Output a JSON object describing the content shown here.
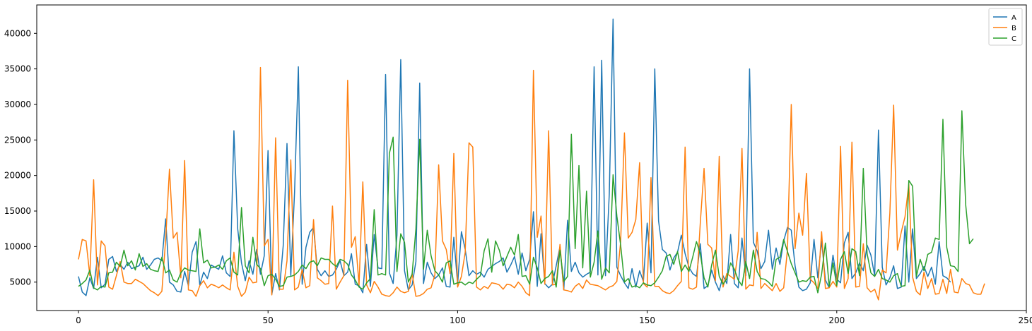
{
  "chart_data": {
    "type": "line",
    "title": "",
    "xlabel": "",
    "ylabel": "",
    "xlim": [
      -11,
      250
    ],
    "ylim": [
      1000,
      44000
    ],
    "xticks": [
      0,
      50,
      100,
      150,
      200,
      250
    ],
    "yticks": [
      5000,
      10000,
      15000,
      20000,
      25000,
      30000,
      35000,
      40000
    ],
    "grid": false,
    "legend_position": "top-right",
    "series": [
      {
        "name": "A",
        "color": "#1f77b4",
        "values": [
          5800,
          3600,
          3100,
          5600,
          4100,
          8500,
          4200,
          4700,
          8200,
          8600,
          6500,
          7500,
          6800,
          7800,
          6900,
          7100,
          7300,
          8500,
          6800,
          7400,
          8200,
          8400,
          8000,
          13900,
          5000,
          4600,
          3700,
          3600,
          6500,
          4500,
          9200,
          10700,
          4600,
          6400,
          5500,
          7400,
          7100,
          6800,
          8700,
          6300,
          5800,
          26300,
          12500,
          7700,
          5200,
          8000,
          6100,
          9600,
          6100,
          8700,
          23500,
          3300,
          6200,
          3900,
          10100,
          24500,
          5900,
          17700,
          35300,
          4700,
          9900,
          12000,
          12700,
          6800,
          5900,
          6600,
          5800,
          6000,
          6800,
          8000,
          5900,
          6400,
          9000,
          4700,
          4500,
          3500,
          10300,
          4400,
          11700,
          7000,
          6900,
          34200,
          6300,
          4800,
          11600,
          36300,
          6600,
          3900,
          4600,
          7900,
          33000,
          4800,
          7800,
          6300,
          5500,
          6000,
          7000,
          4400,
          4300,
          11300,
          4700,
          12100,
          9600,
          5900,
          6600,
          6100,
          6400,
          5700,
          6800,
          7200,
          7600,
          7900,
          8400,
          6400,
          7400,
          8600,
          6100,
          9100,
          6600,
          8200,
          14900,
          4400,
          11800,
          4800,
          4200,
          4700,
          7300,
          10000,
          3900,
          13700,
          6500,
          7800,
          6300,
          5700,
          6100,
          6400,
          35300,
          6000,
          36200,
          5900,
          17400,
          42000,
          7100,
          5900,
          4900,
          4100,
          6900,
          4300,
          6600,
          5100,
          13300,
          6300,
          35000,
          13600,
          9600,
          9100,
          6700,
          8400,
          9200,
          11600,
          9000,
          7100,
          6200,
          5800,
          10400,
          4100,
          4500,
          6700,
          5000,
          3800,
          5900,
          4800,
          11700,
          4800,
          4200,
          11200,
          5900,
          35000,
          10600,
          9400,
          6900,
          7900,
          12300,
          6800,
          9800,
          7500,
          10800,
          12700,
          12300,
          7300,
          4300,
          3800,
          4000,
          4900,
          11000,
          5600,
          10800,
          5300,
          4200,
          8800,
          5400,
          4900,
          10500,
          12000,
          5500,
          6300,
          7700,
          6600,
          10200,
          8800,
          5900,
          26400,
          7100,
          4600,
          5600,
          7300,
          4100,
          4300,
          12900,
          5000,
          12500,
          5500,
          6200,
          7200,
          5800,
          7100,
          4700,
          10700,
          5900,
          5600,
          5000
        ]
      },
      {
        "name": "B",
        "color": "#ff7f0e",
        "values": [
          8200,
          11000,
          10800,
          5900,
          19400,
          4600,
          10800,
          10100,
          4300,
          4000,
          5900,
          7900,
          5000,
          4800,
          4800,
          5400,
          5100,
          4800,
          4300,
          3800,
          3500,
          3100,
          3700,
          11000,
          20900,
          11200,
          12000,
          5600,
          22100,
          3900,
          3800,
          3000,
          4500,
          5200,
          4200,
          4700,
          4500,
          4200,
          4600,
          4200,
          3900,
          9200,
          4400,
          3000,
          3600,
          5700,
          4900,
          5000,
          35200,
          10100,
          11000,
          3200,
          25300,
          4000,
          4000,
          8000,
          22200,
          3900,
          4300,
          6800,
          4200,
          4500,
          13800,
          5600,
          5200,
          4700,
          4800,
          15700,
          4000,
          5000,
          5900,
          33400,
          9900,
          11400,
          4600,
          19100,
          4600,
          3500,
          5100,
          4300,
          3300,
          3100,
          3000,
          3500,
          4300,
          3700,
          3500,
          3700,
          6200,
          3000,
          3100,
          3400,
          4000,
          4200,
          6000,
          21500,
          10800,
          9600,
          6200,
          23100,
          4300,
          5800,
          9200,
          24600,
          24000,
          4300,
          3900,
          4400,
          4100,
          4900,
          4800,
          4600,
          4000,
          4700,
          4600,
          4200,
          5000,
          4400,
          3500,
          3100,
          34800,
          11300,
          14300,
          4700,
          26300,
          4600,
          4700,
          10300,
          3900,
          3800,
          3600,
          4400,
          4800,
          4100,
          5300,
          4700,
          4600,
          4500,
          4200,
          3900,
          4300,
          4500,
          5100,
          10700,
          26000,
          11200,
          12000,
          13800,
          21800,
          4800,
          4300,
          19700,
          4400,
          4400,
          3800,
          3500,
          3400,
          3800,
          4500,
          5100,
          24000,
          4200,
          4000,
          4300,
          13300,
          21000,
          10300,
          9800,
          5200,
          22700,
          4300,
          6200,
          5800,
          5400,
          9400,
          23800,
          4000,
          4600,
          4500,
          12000,
          4100,
          4800,
          4300,
          3800,
          4800,
          3700,
          4200,
          9600,
          30000,
          9700,
          14700,
          11600,
          20300,
          5400,
          4900,
          4100,
          12100,
          4100,
          4200,
          5100,
          4300,
          24100,
          4100,
          5500,
          24700,
          4300,
          4400,
          10400,
          4200,
          3600,
          4000,
          2500,
          6700,
          6300,
          14700,
          29900,
          9500,
          12000,
          14200,
          18800,
          5700,
          3700,
          3200,
          6400,
          4100,
          5500,
          3300,
          3400,
          5400,
          3400,
          6800,
          3600,
          3500,
          5500,
          4800,
          4600,
          3500,
          3300,
          3300,
          4800
        ]
      },
      {
        "name": "C",
        "color": "#2ca02c",
        "values": [
          4400,
          4800,
          5300,
          6700,
          4200,
          3900,
          4400,
          4300,
          6300,
          6400,
          7800,
          7200,
          9500,
          7300,
          8000,
          6700,
          9000,
          7200,
          7600,
          6800,
          6600,
          6500,
          8500,
          6300,
          6700,
          5300,
          5000,
          6300,
          7000,
          6700,
          6600,
          6500,
          12500,
          7700,
          8100,
          7000,
          7100,
          7400,
          6800,
          8000,
          8400,
          6400,
          6000,
          15500,
          7300,
          6300,
          11300,
          7500,
          6900,
          4500,
          5900,
          6100,
          5400,
          4400,
          4500,
          5700,
          5800,
          6000,
          6500,
          7400,
          6900,
          7800,
          8000,
          7300,
          8400,
          8200,
          8200,
          7600,
          7200,
          8200,
          8000,
          7500,
          6000,
          5300,
          4300,
          4000,
          4900,
          5500,
          15200,
          6000,
          6200,
          6000,
          23100,
          25400,
          6500,
          11800,
          10600,
          5000,
          6100,
          12500,
          25100,
          6800,
          12300,
          8700,
          6600,
          6000,
          5000,
          7700,
          8000,
          4700,
          4900,
          5000,
          4600,
          5000,
          4800,
          5400,
          5900,
          9400,
          11100,
          6400,
          10800,
          9500,
          7300,
          8600,
          9900,
          8800,
          11700,
          5800,
          5900,
          4700,
          8500,
          7000,
          4800,
          5500,
          5800,
          6600,
          4300,
          9500,
          5100,
          5800,
          25800,
          9700,
          21400,
          7000,
          17800,
          5700,
          7800,
          12200,
          5400,
          7000,
          6300,
          20100,
          14300,
          10200,
          5000,
          5500,
          4300,
          4500,
          4200,
          4900,
          4600,
          4500,
          4900,
          5700,
          6600,
          8600,
          8900,
          7500,
          9300,
          6500,
          7400,
          6500,
          8500,
          10700,
          9000,
          5600,
          4300,
          7400,
          9500,
          5800,
          4700,
          5500,
          7700,
          6800,
          5300,
          4500,
          7900,
          5500,
          9500,
          6500,
          5500,
          5400,
          5000,
          4400,
          8200,
          8500,
          11000,
          9300,
          7600,
          6300,
          5000,
          5200,
          5100,
          5700,
          5800,
          3500,
          6100,
          10500,
          4400,
          7700,
          4500,
          8200,
          9300,
          6200,
          9700,
          9300,
          5900,
          21000,
          9000,
          6300,
          5800,
          6800,
          5500,
          5300,
          5000,
          5900,
          6200,
          4400,
          4500,
          19300,
          18500,
          5800,
          8200,
          6600,
          8900,
          9200,
          11200,
          11000,
          27900,
          9900,
          7300,
          7200,
          6500,
          29100,
          15900,
          10400,
          11100
        ]
      }
    ]
  }
}
